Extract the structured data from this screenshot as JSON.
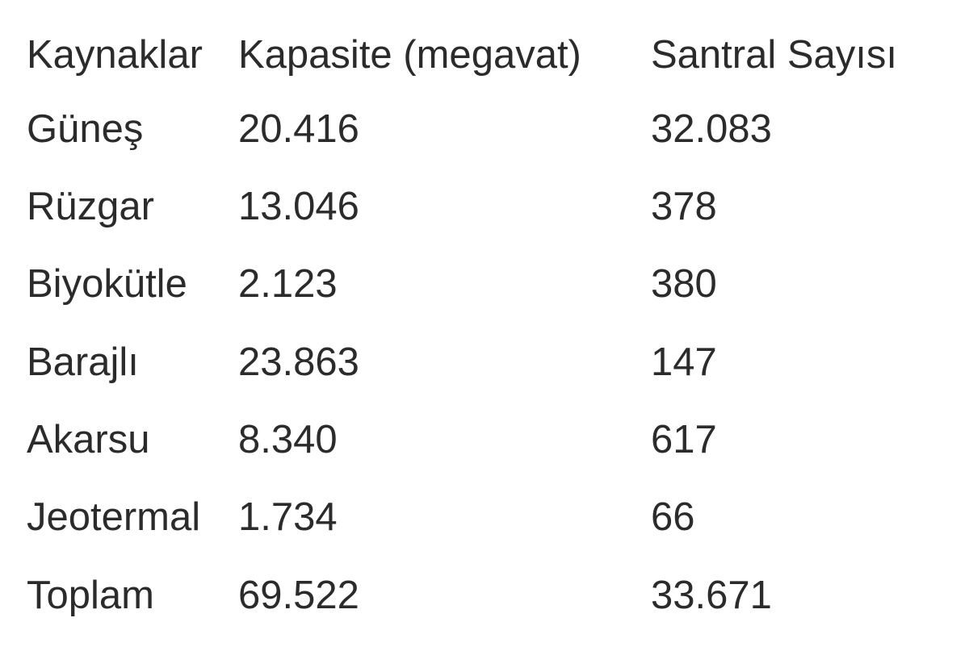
{
  "table": {
    "header": [
      "Kaynaklar",
      "Kapasite (megavat)",
      "Santral Sayısı"
    ],
    "rows": [
      [
        "Güneş",
        "20.416",
        "32.083"
      ],
      [
        "Rüzgar",
        "13.046",
        "378"
      ],
      [
        "Biyokütle",
        "2.123",
        "380"
      ],
      [
        "Barajlı",
        "23.863",
        "147"
      ],
      [
        "Akarsu",
        "8.340",
        "617"
      ],
      [
        "Jeotermal",
        "1.734",
        "66"
      ],
      [
        "Toplam",
        "69.522",
        "33.671"
      ]
    ]
  }
}
